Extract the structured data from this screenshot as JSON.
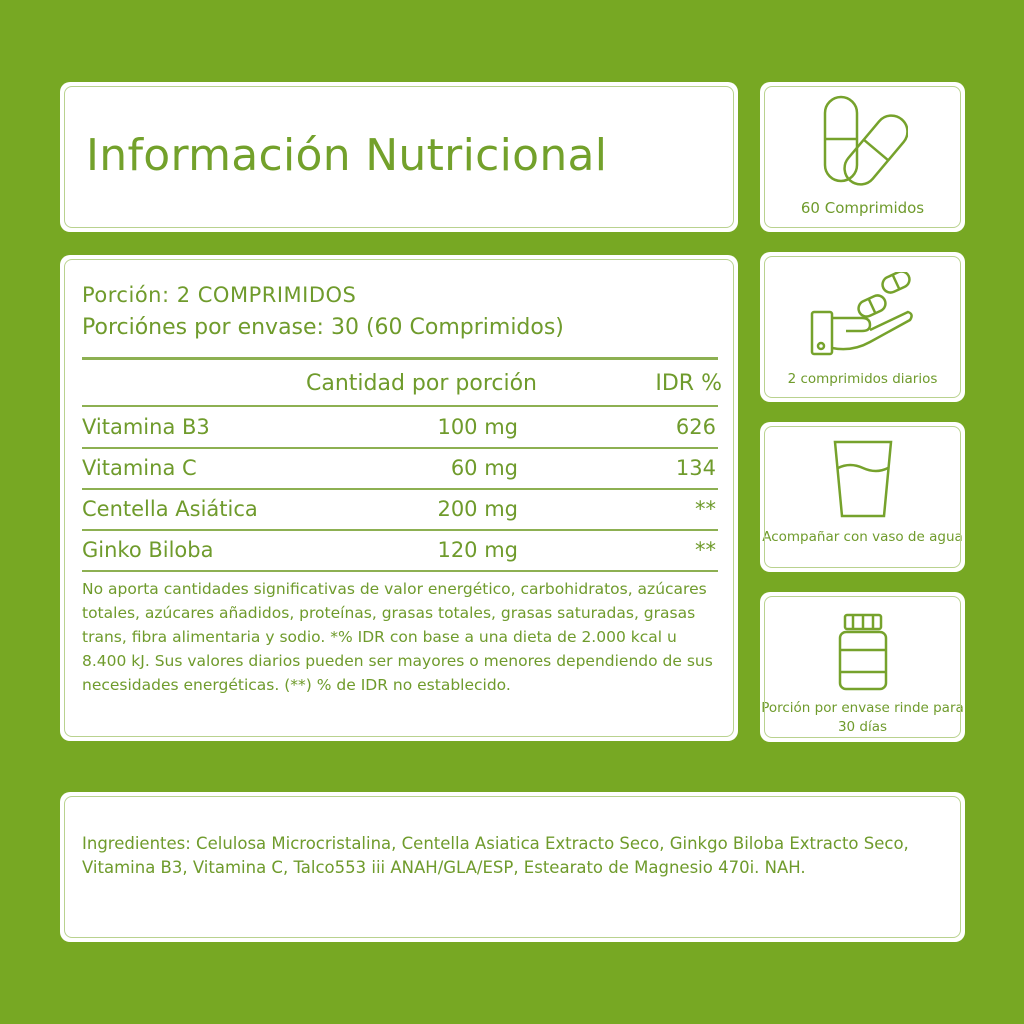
{
  "title": "Información Nutricional",
  "serving": {
    "portion": "Porción:  2 COMPRIMIDOS",
    "per_container": "Porciónes por envase: 30 (60 Comprimidos)"
  },
  "table": {
    "headers": [
      "Cantidad por porción",
      "IDR %"
    ],
    "rows": [
      {
        "name": "Vitamina B3",
        "amount": "100 mg",
        "idr": "626"
      },
      {
        "name": "Vitamina C",
        "amount": "60 mg",
        "idr": "134"
      },
      {
        "name": "Centella Asiática",
        "amount": "200 mg",
        "idr": "**"
      },
      {
        "name": "Ginko Biloba",
        "amount": "120 mg",
        "idr": "**"
      }
    ]
  },
  "note": "No aporta cantidades significativas de valor energético, carbohidratos, azúcares totales, azúcares añadidos, proteínas, grasas totales, grasas saturadas, grasas trans, fibra alimentaria y sodio. *% IDR con base a una dieta de 2.000 kcal u 8.400 kJ. Sus valores diarios pueden ser mayores o menores dependiendo de sus necesidades energéticas. (**) % de IDR no establecido.",
  "side": [
    {
      "icon": "capsules-icon",
      "label": "60 Comprimidos"
    },
    {
      "icon": "hand-pills-icon",
      "label": "2 comprimidos diarios"
    },
    {
      "icon": "water-glass-icon",
      "label": "Acompañar con vaso de agua"
    },
    {
      "icon": "bottle-icon",
      "label": "Porción por envase rinde para 30 días"
    }
  ],
  "ingredients": "Ingredientes: Celulosa Microcristalina, Centella Asiatica Extracto Seco, Ginkgo Biloba Extracto Seco, Vitamina B3, Vitamina C, Talco553 iii ANAH/GLA/ESP, Estearato de Magnesio 470i. NAH.",
  "colors": {
    "background": "#77a823",
    "text": "#6f9b2c",
    "card": "#ffffff"
  }
}
